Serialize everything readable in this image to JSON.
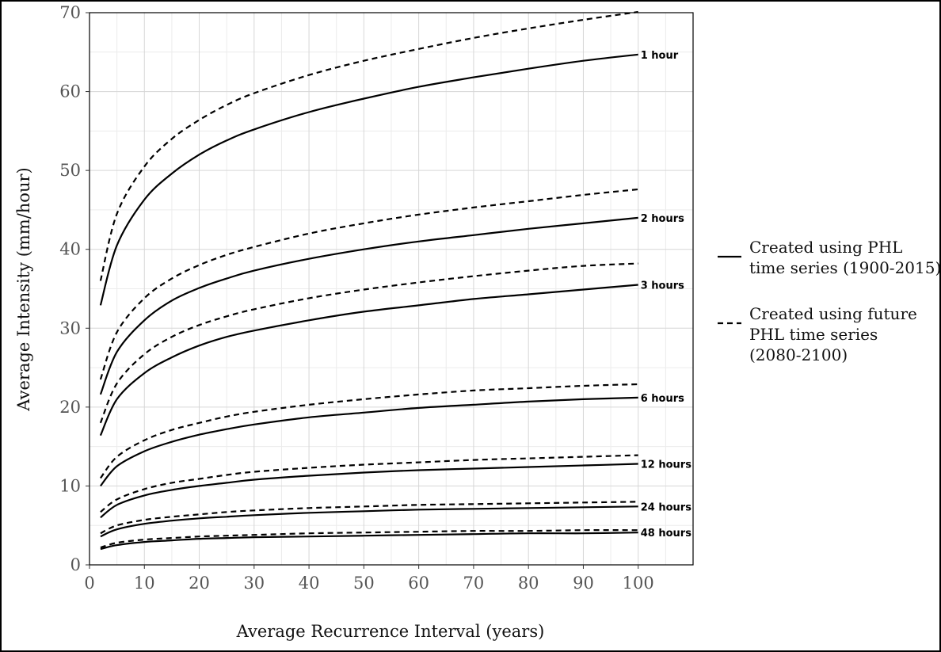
{
  "chart_data": {
    "type": "line",
    "xlabel": "Average Recurrence Interval (years)",
    "ylabel": "Average Intensity (mm/hour)",
    "xlim": [
      0,
      110
    ],
    "ylim": [
      0,
      70
    ],
    "xticks": [
      "0",
      "10",
      "20",
      "30",
      "40",
      "50",
      "60",
      "70",
      "80",
      "90",
      "100"
    ],
    "yticks": [
      "0",
      "10",
      "20",
      "30",
      "40",
      "50",
      "60",
      "70"
    ],
    "grid": true,
    "legend_position": "right",
    "legend": [
      {
        "style": "solid",
        "lines": [
          "Created using PHL",
          "time series (1900-2015)"
        ]
      },
      {
        "style": "dashed",
        "lines": [
          "Created using future",
          "PHL time series",
          "(2080-2100)"
        ]
      }
    ],
    "x": [
      2,
      5,
      10,
      15,
      20,
      25,
      30,
      40,
      50,
      60,
      70,
      80,
      90,
      100
    ],
    "series": [
      {
        "name": "1 hour",
        "label": "1 hour",
        "style": "solid",
        "values": [
          32.9,
          40.5,
          46.3,
          49.6,
          52.0,
          53.8,
          55.2,
          57.4,
          59.1,
          60.6,
          61.8,
          62.9,
          63.9,
          64.7
        ]
      },
      {
        "name": "1 hour",
        "style": "dashed",
        "values": [
          36.0,
          44.5,
          50.5,
          54.0,
          56.4,
          58.3,
          59.8,
          62.1,
          63.9,
          65.4,
          66.8,
          68.0,
          69.1,
          70.1
        ]
      },
      {
        "name": "2 hours",
        "label": "2 hours",
        "style": "solid",
        "values": [
          21.6,
          27.0,
          31.0,
          33.5,
          35.1,
          36.3,
          37.3,
          38.8,
          40.0,
          41.0,
          41.8,
          42.6,
          43.3,
          44.0
        ]
      },
      {
        "name": "2 hours",
        "style": "dashed",
        "values": [
          23.5,
          29.5,
          33.8,
          36.3,
          38.0,
          39.3,
          40.3,
          42.0,
          43.3,
          44.4,
          45.3,
          46.1,
          46.9,
          47.6
        ]
      },
      {
        "name": "3 hours",
        "label": "3 hours",
        "style": "solid",
        "values": [
          16.4,
          21.0,
          24.3,
          26.3,
          27.8,
          28.9,
          29.7,
          31.0,
          32.1,
          32.9,
          33.7,
          34.3,
          34.9,
          35.5
        ]
      },
      {
        "name": "3 hours",
        "style": "dashed",
        "values": [
          18.0,
          23.0,
          26.7,
          28.9,
          30.4,
          31.5,
          32.4,
          33.8,
          34.9,
          35.8,
          36.6,
          37.3,
          37.9,
          38.2
        ]
      },
      {
        "name": "6 hours",
        "label": "6 hours",
        "style": "solid",
        "values": [
          10.0,
          12.5,
          14.4,
          15.6,
          16.5,
          17.2,
          17.8,
          18.7,
          19.3,
          19.9,
          20.3,
          20.7,
          21.0,
          21.2
        ]
      },
      {
        "name": "6 hours",
        "style": "dashed",
        "values": [
          11.0,
          13.7,
          15.8,
          17.1,
          18.0,
          18.8,
          19.4,
          20.3,
          21.0,
          21.6,
          22.1,
          22.4,
          22.7,
          22.9
        ]
      },
      {
        "name": "12 hours",
        "label": "12 hours",
        "style": "solid",
        "values": [
          6.0,
          7.6,
          8.8,
          9.5,
          10.0,
          10.4,
          10.8,
          11.3,
          11.7,
          12.0,
          12.2,
          12.4,
          12.6,
          12.8
        ]
      },
      {
        "name": "12 hours",
        "style": "dashed",
        "values": [
          6.7,
          8.3,
          9.6,
          10.4,
          10.9,
          11.4,
          11.8,
          12.3,
          12.7,
          13.0,
          13.3,
          13.5,
          13.7,
          13.9
        ]
      },
      {
        "name": "24 hours",
        "label": "24 hours",
        "style": "solid",
        "values": [
          3.6,
          4.5,
          5.2,
          5.6,
          5.9,
          6.1,
          6.3,
          6.6,
          6.8,
          7.0,
          7.1,
          7.2,
          7.3,
          7.4
        ]
      },
      {
        "name": "24 hours",
        "style": "dashed",
        "values": [
          4.0,
          5.0,
          5.7,
          6.1,
          6.4,
          6.7,
          6.9,
          7.2,
          7.4,
          7.6,
          7.7,
          7.8,
          7.9,
          8.0
        ]
      },
      {
        "name": "48 hours",
        "label": "48 hours",
        "style": "solid",
        "values": [
          2.0,
          2.5,
          2.9,
          3.1,
          3.3,
          3.4,
          3.5,
          3.6,
          3.7,
          3.8,
          3.9,
          4.0,
          4.0,
          4.1
        ]
      },
      {
        "name": "48 hours",
        "style": "dashed",
        "values": [
          2.2,
          2.8,
          3.2,
          3.4,
          3.6,
          3.7,
          3.8,
          4.0,
          4.1,
          4.2,
          4.3,
          4.3,
          4.4,
          4.4
        ]
      }
    ]
  }
}
